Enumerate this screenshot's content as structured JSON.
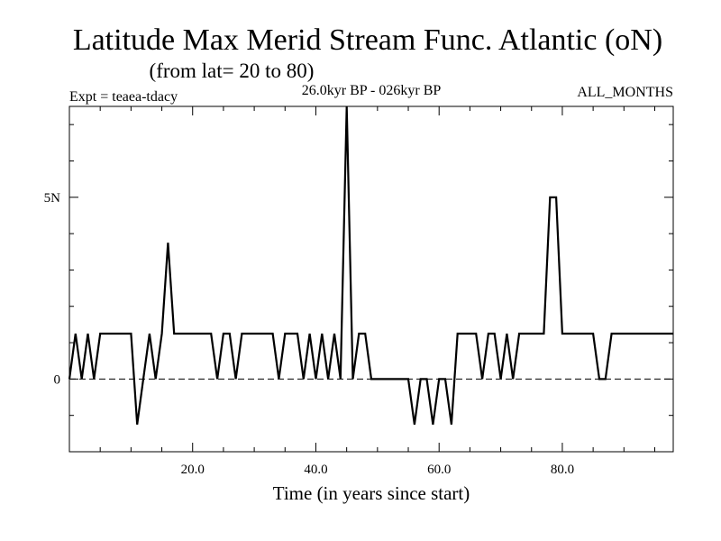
{
  "chart_data": {
    "type": "line",
    "title": "Latitude Max Merid Stream Func. Atlantic (oN)",
    "subtitle": "(from lat= 20 to 80)",
    "header_left": "Expt = teaea-tdacy",
    "header_center": "26.0kyr BP - 026kyr BP",
    "header_right": "ALL_MONTHS",
    "xlabel": "Time (in years since start)",
    "ylabel": "",
    "xlim": [
      0,
      98
    ],
    "ylim": [
      -2,
      7.5
    ],
    "x_ticks": [
      {
        "value": 20,
        "label": "20.0"
      },
      {
        "value": 40,
        "label": "40.0"
      },
      {
        "value": 60,
        "label": "60.0"
      },
      {
        "value": 80,
        "label": "80.0"
      }
    ],
    "y_ticks": [
      {
        "value": 0,
        "label": "0"
      },
      {
        "value": 5,
        "label": "5N"
      }
    ],
    "reference_line": {
      "value": 0,
      "style": "dashed"
    },
    "series": [
      {
        "name": "Latitude Max Merid Stream Func.",
        "x": [
          0,
          1,
          2,
          3,
          4,
          5,
          6,
          7,
          8,
          9,
          10,
          11,
          12,
          13,
          14,
          15,
          16,
          17,
          18,
          19,
          20,
          21,
          22,
          23,
          24,
          25,
          26,
          27,
          28,
          29,
          30,
          31,
          32,
          33,
          34,
          35,
          36,
          37,
          38,
          39,
          40,
          41,
          42,
          43,
          44,
          45,
          46,
          47,
          48,
          49,
          50,
          51,
          52,
          53,
          54,
          55,
          56,
          57,
          58,
          59,
          60,
          61,
          62,
          63,
          64,
          65,
          66,
          67,
          68,
          69,
          70,
          71,
          72,
          73,
          74,
          75,
          76,
          77,
          78,
          79,
          80,
          81,
          82,
          83,
          84,
          85,
          86,
          87,
          88,
          89,
          90,
          91,
          92,
          93,
          94,
          95,
          96,
          97,
          98
        ],
        "values": [
          0,
          1.25,
          0,
          1.25,
          0,
          1.25,
          1.25,
          1.25,
          1.25,
          1.25,
          1.25,
          -1.25,
          0,
          1.25,
          0,
          1.25,
          3.75,
          1.25,
          1.25,
          1.25,
          1.25,
          1.25,
          1.25,
          1.25,
          0,
          1.25,
          1.25,
          0,
          1.25,
          1.25,
          1.25,
          1.25,
          1.25,
          1.25,
          0,
          1.25,
          1.25,
          1.25,
          0,
          1.25,
          0,
          1.25,
          0,
          1.25,
          0,
          7.5,
          0,
          1.25,
          1.25,
          0,
          0,
          0,
          0,
          0,
          0,
          0,
          -1.25,
          0,
          0,
          -1.25,
          0,
          0,
          -1.25,
          1.25,
          1.25,
          1.25,
          1.25,
          0,
          1.25,
          1.25,
          0,
          1.25,
          0,
          1.25,
          1.25,
          1.25,
          1.25,
          1.25,
          5,
          5,
          1.25,
          1.25,
          1.25,
          1.25,
          1.25,
          1.25,
          0,
          0,
          1.25,
          1.25,
          1.25,
          1.25,
          1.25,
          1.25,
          1.25,
          1.25,
          1.25,
          1.25,
          1.25
        ]
      }
    ]
  }
}
